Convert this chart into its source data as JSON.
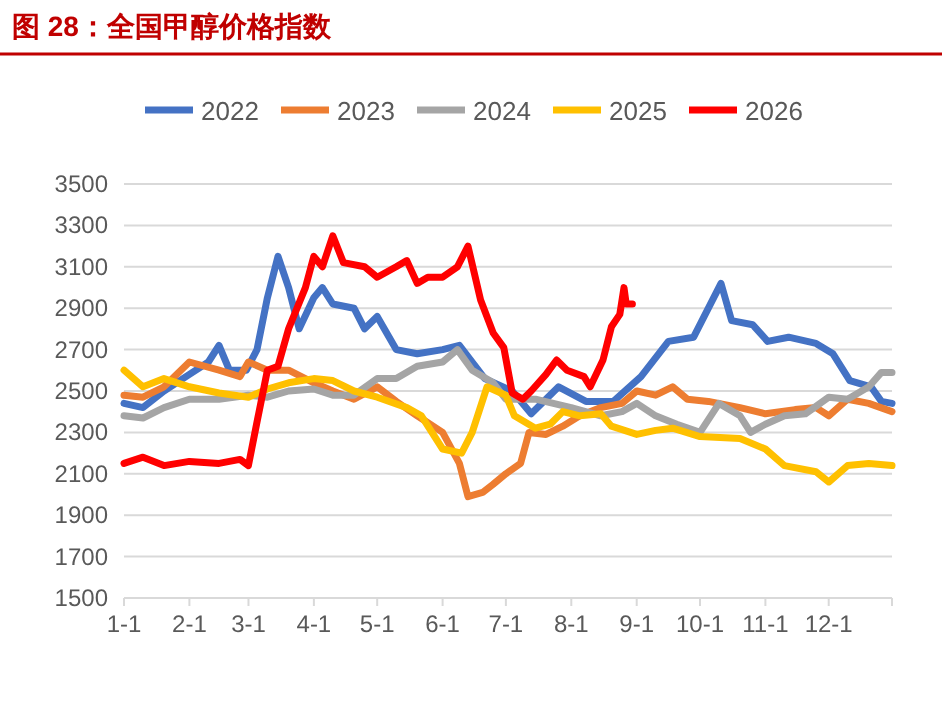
{
  "chart_data": {
    "type": "line",
    "title": "图 28：全国甲醇价格指数",
    "xlim": [
      "--01-01",
      "--12-31"
    ],
    "xticks": [
      {
        "value": "--01-01",
        "label": "1-1"
      },
      {
        "value": "--02-01",
        "label": "2-1"
      },
      {
        "value": "--03-01",
        "label": "3-1"
      },
      {
        "value": "--04-01",
        "label": "4-1"
      },
      {
        "value": "--05-01",
        "label": "5-1"
      },
      {
        "value": "--06-01",
        "label": "6-1"
      },
      {
        "value": "--07-01",
        "label": "7-1"
      },
      {
        "value": "--08-01",
        "label": "8-1"
      },
      {
        "value": "--09-01",
        "label": "9-1"
      },
      {
        "value": "--10-01",
        "label": "10-1"
      },
      {
        "value": "--11-01",
        "label": "11-1"
      },
      {
        "value": "--12-01",
        "label": "12-1"
      }
    ],
    "ylim": [
      1500,
      3500
    ],
    "yticks": [
      1500,
      1700,
      1900,
      2100,
      2300,
      2500,
      2700,
      2900,
      3100,
      3300,
      3500
    ],
    "grid": "y",
    "legend": "top",
    "marker": "none",
    "line_style": "solid",
    "series": [
      {
        "name": "2022",
        "color": "#4472c4",
        "x": [
          "--01-01",
          "--01-10",
          "--01-20",
          "--02-01",
          "--02-10",
          "--02-15",
          "--02-20",
          "--02-28",
          "--03-05",
          "--03-10",
          "--03-15",
          "--03-20",
          "--03-25",
          "--04-01",
          "--04-05",
          "--04-10",
          "--04-20",
          "--04-25",
          "--05-01",
          "--05-10",
          "--05-20",
          "--06-01",
          "--06-09",
          "--06-21",
          "--07-04",
          "--07-13",
          "--07-26",
          "--08-08",
          "--08-21",
          "--09-03",
          "--09-16",
          "--09-28",
          "--10-11",
          "--10-16",
          "--10-26",
          "--11-02",
          "--11-12",
          "--11-25",
          "--12-03",
          "--12-11",
          "--12-21",
          "--12-26",
          "--12-31"
        ],
        "values": [
          2440,
          2420,
          2500,
          2580,
          2640,
          2720,
          2600,
          2600,
          2700,
          2950,
          3150,
          3000,
          2800,
          2950,
          3000,
          2920,
          2900,
          2800,
          2860,
          2700,
          2680,
          2700,
          2720,
          2560,
          2500,
          2390,
          2520,
          2450,
          2450,
          2570,
          2740,
          2760,
          3020,
          2840,
          2820,
          2740,
          2760,
          2730,
          2680,
          2550,
          2520,
          2450,
          2440
        ]
      },
      {
        "name": "2023",
        "color": "#ed7d31",
        "x": [
          "--01-01",
          "--01-10",
          "--01-20",
          "--02-01",
          "--02-15",
          "--02-25",
          "--03-01",
          "--03-10",
          "--03-20",
          "--04-01",
          "--04-10",
          "--04-20",
          "--05-01",
          "--05-10",
          "--05-20",
          "--06-01",
          "--06-09",
          "--06-13",
          "--06-20",
          "--06-25",
          "--07-01",
          "--07-08",
          "--07-12",
          "--07-20",
          "--07-28",
          "--08-05",
          "--08-15",
          "--08-25",
          "--09-01",
          "--09-10",
          "--09-18",
          "--09-25",
          "--10-05",
          "--10-20",
          "--11-01",
          "--11-15",
          "--11-25",
          "--12-01",
          "--12-10",
          "--12-20",
          "--12-31"
        ],
        "values": [
          2480,
          2470,
          2520,
          2640,
          2600,
          2570,
          2640,
          2600,
          2600,
          2540,
          2500,
          2460,
          2520,
          2450,
          2380,
          2300,
          2150,
          1990,
          2010,
          2050,
          2100,
          2150,
          2300,
          2290,
          2330,
          2380,
          2420,
          2440,
          2500,
          2480,
          2520,
          2460,
          2450,
          2420,
          2390,
          2410,
          2420,
          2380,
          2460,
          2440,
          2400
        ]
      },
      {
        "name": "2024",
        "color": "#a5a5a5",
        "x": [
          "--01-01",
          "--01-10",
          "--01-20",
          "--02-01",
          "--02-15",
          "--03-01",
          "--03-10",
          "--03-20",
          "--04-01",
          "--04-10",
          "--04-20",
          "--05-01",
          "--05-10",
          "--05-20",
          "--06-01",
          "--06-08",
          "--06-15",
          "--06-25",
          "--07-01",
          "--07-15",
          "--08-01",
          "--08-15",
          "--08-25",
          "--09-01",
          "--09-10",
          "--09-20",
          "--10-01",
          "--10-10",
          "--10-20",
          "--10-25",
          "--11-01",
          "--11-10",
          "--11-20",
          "--12-01",
          "--12-10",
          "--12-20",
          "--12-26",
          "--12-31"
        ],
        "values": [
          2380,
          2370,
          2420,
          2460,
          2460,
          2480,
          2470,
          2500,
          2510,
          2480,
          2480,
          2560,
          2560,
          2620,
          2640,
          2700,
          2600,
          2540,
          2460,
          2460,
          2420,
          2380,
          2400,
          2440,
          2380,
          2340,
          2300,
          2440,
          2380,
          2300,
          2340,
          2380,
          2390,
          2470,
          2460,
          2520,
          2590,
          2590
        ]
      },
      {
        "name": "2025",
        "color": "#ffc000",
        "x": [
          "--01-01",
          "--01-10",
          "--01-20",
          "--02-01",
          "--02-15",
          "--03-01",
          "--03-10",
          "--03-20",
          "--04-01",
          "--04-10",
          "--04-20",
          "--05-01",
          "--05-15",
          "--05-22",
          "--06-01",
          "--06-10",
          "--06-15",
          "--06-22",
          "--07-01",
          "--07-05",
          "--07-15",
          "--07-22",
          "--07-28",
          "--08-05",
          "--08-15",
          "--08-20",
          "--09-01",
          "--09-10",
          "--09-18",
          "--10-01",
          "--10-20",
          "--11-01",
          "--11-10",
          "--11-25",
          "--12-01",
          "--12-10",
          "--12-20",
          "--12-31"
        ],
        "values": [
          2600,
          2520,
          2560,
          2520,
          2490,
          2470,
          2510,
          2540,
          2560,
          2550,
          2500,
          2470,
          2420,
          2380,
          2220,
          2200,
          2300,
          2520,
          2480,
          2380,
          2320,
          2340,
          2400,
          2380,
          2390,
          2330,
          2290,
          2310,
          2320,
          2280,
          2270,
          2220,
          2140,
          2110,
          2060,
          2140,
          2150,
          2140
        ]
      },
      {
        "name": "2026",
        "color": "#ff0000",
        "x": [
          "--01-01",
          "--01-10",
          "--01-20",
          "--02-01",
          "--02-15",
          "--02-25",
          "--03-01",
          "--03-05",
          "--03-10",
          "--03-15",
          "--03-20",
          "--03-28",
          "--04-01",
          "--04-05",
          "--04-10",
          "--04-15",
          "--04-25",
          "--05-01",
          "--05-10",
          "--05-15",
          "--05-20",
          "--05-25",
          "--06-01",
          "--06-08",
          "--06-13",
          "--06-19",
          "--06-25",
          "--06-30",
          "--07-04",
          "--07-09",
          "--07-13",
          "--07-20",
          "--07-25",
          "--07-30",
          "--08-07",
          "--08-10",
          "--08-16",
          "--08-20",
          "--08-24",
          "--08-26",
          "--08-27",
          "--08-30"
        ],
        "values": [
          2150,
          2180,
          2140,
          2160,
          2150,
          2170,
          2140,
          2350,
          2600,
          2620,
          2800,
          3000,
          3150,
          3100,
          3250,
          3120,
          3100,
          3050,
          3100,
          3130,
          3020,
          3050,
          3050,
          3100,
          3200,
          2940,
          2780,
          2710,
          2490,
          2460,
          2500,
          2580,
          2650,
          2600,
          2570,
          2520,
          2650,
          2810,
          2870,
          3000,
          2920,
          2920
        ]
      }
    ]
  }
}
